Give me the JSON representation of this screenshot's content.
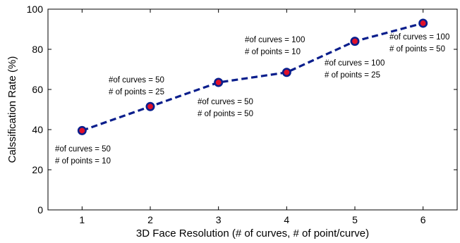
{
  "chart_data": {
    "type": "line",
    "title": "",
    "xlabel": "3D Face Resolution (# of curves, # of point/curve)",
    "ylabel": "Calssification Rate (%)",
    "xlim": [
      0.5,
      6.5
    ],
    "ylim": [
      0,
      100
    ],
    "x_ticks": [
      1,
      2,
      3,
      4,
      5,
      6
    ],
    "y_ticks": [
      0,
      20,
      40,
      60,
      80,
      100
    ],
    "grid": false,
    "legend": "none",
    "line_color": "#0a1e8c",
    "line_style": "dashed",
    "marker_edge_color": "#0a1e8c",
    "marker_face_color": "#e0102a",
    "series": [
      {
        "x": [
          1,
          2,
          3,
          4,
          5,
          6
        ],
        "values": [
          39.5,
          51.5,
          63.5,
          68.5,
          84,
          93
        ]
      }
    ],
    "annotations": [
      {
        "line1": "#of curves = 50",
        "line2": "# of points = 10"
      },
      {
        "line1": "#of curves = 50",
        "line2": "# of points = 25"
      },
      {
        "line1": "#of curves = 50",
        "line2": "# of points = 50"
      },
      {
        "line1": "#of curves = 100",
        "line2": "# of points = 10"
      },
      {
        "line1": "#of curves = 100",
        "line2": "# of points = 25"
      },
      {
        "line1": "#of curves = 100",
        "line2": "# of points = 50"
      }
    ]
  }
}
